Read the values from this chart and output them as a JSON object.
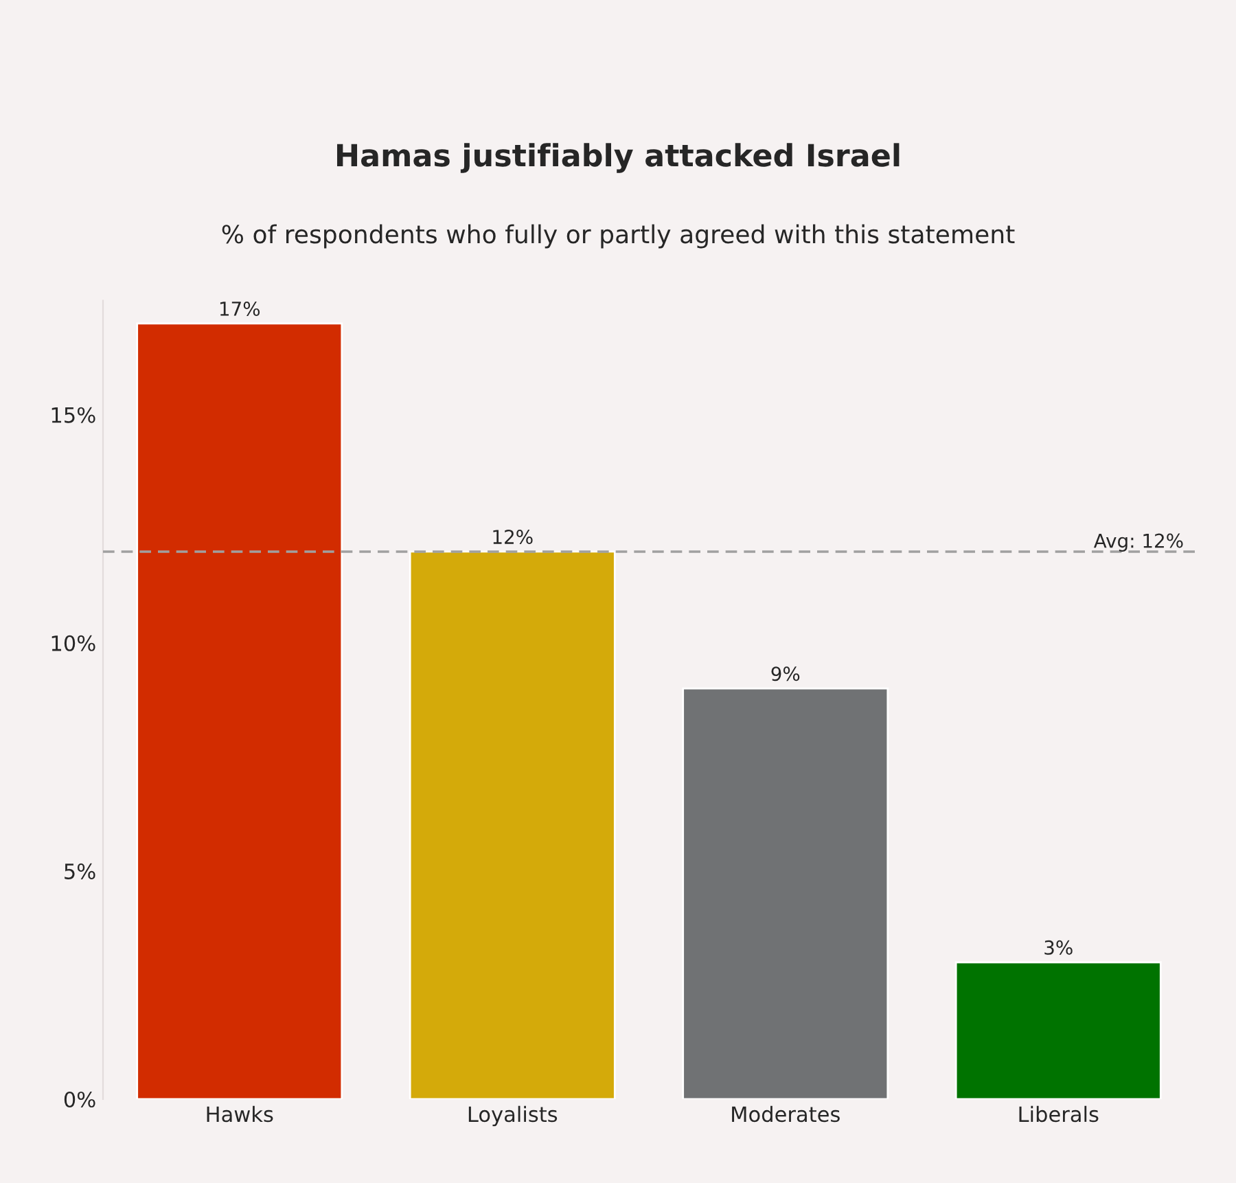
{
  "chart_data": {
    "type": "bar",
    "title": "Hamas justifiably attacked Israel",
    "subtitle": "% of respondents who fully or partly agreed with this statement",
    "categories": [
      "Hawks",
      "Loyalists",
      "Moderates",
      "Liberals"
    ],
    "values": [
      17,
      12,
      9,
      3
    ],
    "colors": [
      "#d22c00",
      "#d4aa0a",
      "#707274",
      "#007300"
    ],
    "value_labels": [
      "17%",
      "12%",
      "9%",
      "3%"
    ],
    "ylim": [
      0,
      17.5
    ],
    "yticks": [
      {
        "value": 0,
        "label": "0%"
      },
      {
        "value": 5,
        "label": "5%"
      },
      {
        "value": 10,
        "label": "10%"
      },
      {
        "value": 15,
        "label": "15%"
      }
    ],
    "grid": false,
    "legend": false,
    "ref_lines": [
      {
        "axis": "y",
        "value": 12,
        "label": "Avg: 12%",
        "color": "#a0a0a0",
        "line_style": "dashed"
      }
    ]
  }
}
